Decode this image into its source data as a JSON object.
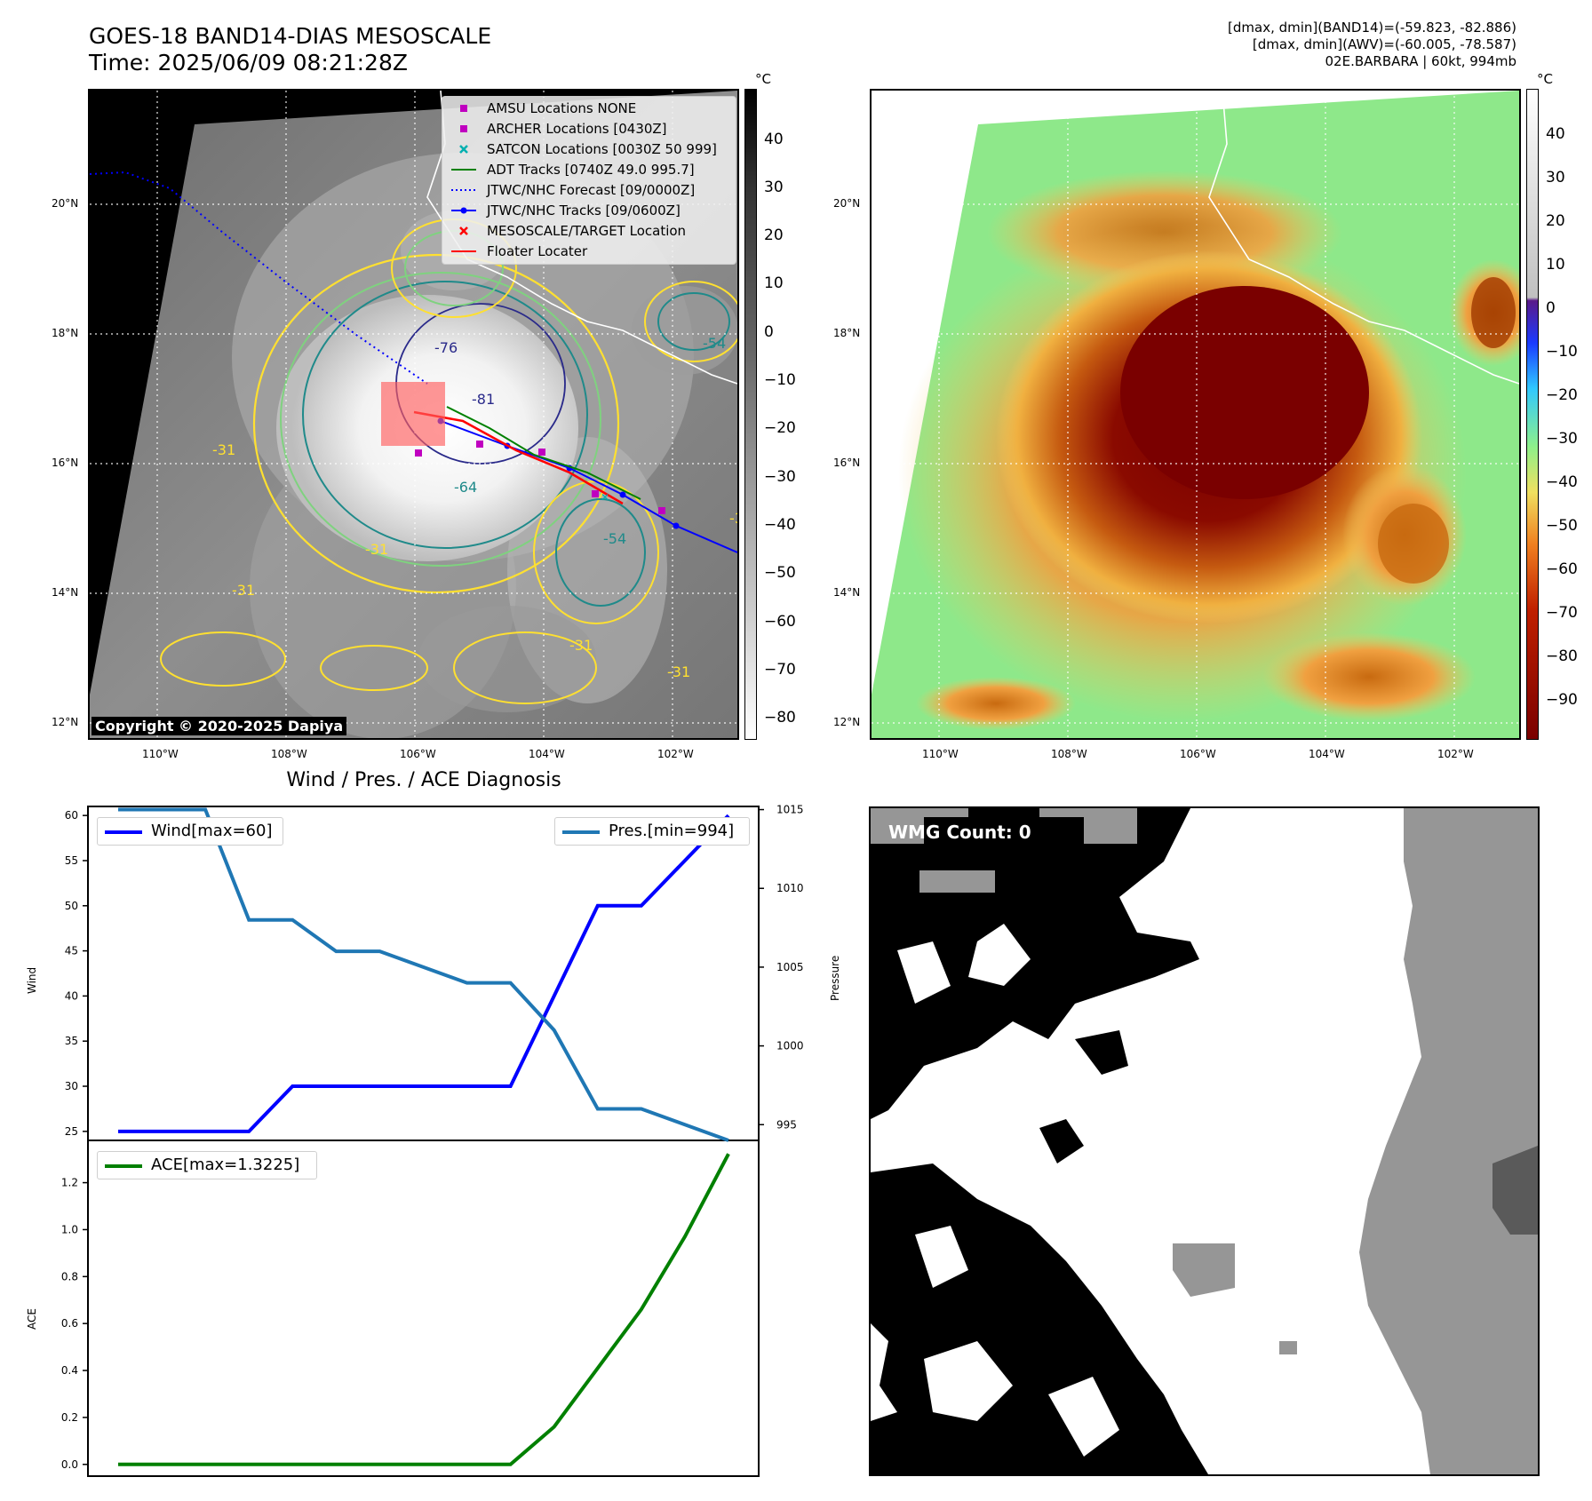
{
  "header": {
    "title_line1": "GOES-18 BAND14-DIAS MESOSCALE",
    "title_line2": "Time: 2025/06/09 08:21:28Z",
    "stats_line1": "[dmax, dmin](BAND14)=(-59.823, -82.886)",
    "stats_line2": "[dmax, dmin](AWV)=(-60.005, -78.587)",
    "stats_line3": "02E.BARBARA | 60kt, 994mb"
  },
  "map_ticks": {
    "lat_labels": [
      "20°N",
      "18°N",
      "16°N",
      "14°N",
      "12°N"
    ],
    "lon_labels": [
      "110°W",
      "108°W",
      "106°W",
      "104°W",
      "102°W"
    ]
  },
  "left_colorbar": {
    "unit": "°C",
    "ticks": [
      "40",
      "30",
      "20",
      "10",
      "0",
      "−10",
      "−20",
      "−30",
      "−40",
      "−50",
      "−60",
      "−70",
      "−80"
    ]
  },
  "right_colorbar": {
    "unit": "°C",
    "ticks": [
      "40",
      "30",
      "20",
      "10",
      "0",
      "−10",
      "−20",
      "−30",
      "−40",
      "−50",
      "−60",
      "−70",
      "−80",
      "−90"
    ]
  },
  "map_legend": [
    {
      "label": "AMSU Locations NONE",
      "symbol": "square",
      "color": "#c000c0"
    },
    {
      "label": "ARCHER Locations [0430Z]",
      "symbol": "square",
      "color": "#c000c0"
    },
    {
      "label": "SATCON Locations [0030Z 50 999]",
      "symbol": "x",
      "color": "#00b0b0"
    },
    {
      "label": "ADT Tracks [0740Z 49.0 995.7]",
      "symbol": "line",
      "color": "#008000"
    },
    {
      "label": "JTWC/NHC Forecast [09/0000Z]",
      "symbol": "dotted",
      "color": "#0000ff"
    },
    {
      "label": "JTWC/NHC Tracks [09/0600Z]",
      "symbol": "line-dot",
      "color": "#0000ff"
    },
    {
      "label": "MESOSCALE/TARGET Location",
      "symbol": "x",
      "color": "#ff0000"
    },
    {
      "label": "Floater Locater",
      "symbol": "line",
      "color": "#ff0000"
    }
  ],
  "contour_labels": [
    "-76",
    "-81",
    "-64",
    "-54",
    "-31",
    "-31",
    "-31",
    "-54",
    "-31",
    "-31",
    "-31"
  ],
  "copyright": "Copyright © 2020-2025 Dapiya",
  "wmg_label": "WMG Count: 0",
  "colors": {
    "wind": "#0000ff",
    "pressure": "#1f77b4",
    "ace": "#008000",
    "contour_yellow": "#ffe030",
    "contour_lightgreen": "#7fd27f",
    "contour_teal": "#1f8a8a",
    "contour_navy": "#2a2a8a"
  },
  "chart_data": [
    {
      "type": "line",
      "title": "Wind / Pres. / ACE Diagnosis",
      "ylabel": "Wind",
      "y2label": "Pressure",
      "ylim": [
        24,
        61
      ],
      "y2lim": [
        994,
        1015.2
      ],
      "yticks": [
        25,
        30,
        35,
        40,
        45,
        50,
        55,
        60
      ],
      "y2ticks": [
        995,
        1000,
        1005,
        1010,
        1015
      ],
      "x": [
        0,
        1,
        2,
        3,
        4,
        5,
        6,
        7,
        8,
        9,
        10,
        11,
        12,
        13,
        14
      ],
      "series": [
        {
          "name": "Wind[max=60]",
          "axis": "left",
          "values": [
            25,
            25,
            25,
            25,
            30,
            30,
            30,
            30,
            30,
            30,
            40,
            50,
            50,
            55,
            60
          ]
        },
        {
          "name": "Pres.[min=994]",
          "axis": "right",
          "values": [
            1015,
            1015,
            1015,
            1008,
            1008,
            1006,
            1006,
            1005,
            1004,
            1004,
            1001,
            996,
            996,
            995,
            994
          ]
        }
      ]
    },
    {
      "type": "line",
      "ylabel": "ACE",
      "ylim": [
        -0.05,
        1.38
      ],
      "yticks": [
        "0.0",
        "0.2",
        "0.4",
        "0.6",
        "0.8",
        "1.0",
        "1.2"
      ],
      "x": [
        0,
        1,
        2,
        3,
        4,
        5,
        6,
        7,
        8,
        9,
        10,
        11,
        12,
        13,
        14
      ],
      "series": [
        {
          "name": "ACE[max=1.3225]",
          "axis": "left",
          "values": [
            0,
            0,
            0,
            0,
            0,
            0,
            0,
            0,
            0,
            0,
            0.16,
            0.41,
            0.66,
            0.97,
            1.3225
          ]
        }
      ]
    }
  ]
}
